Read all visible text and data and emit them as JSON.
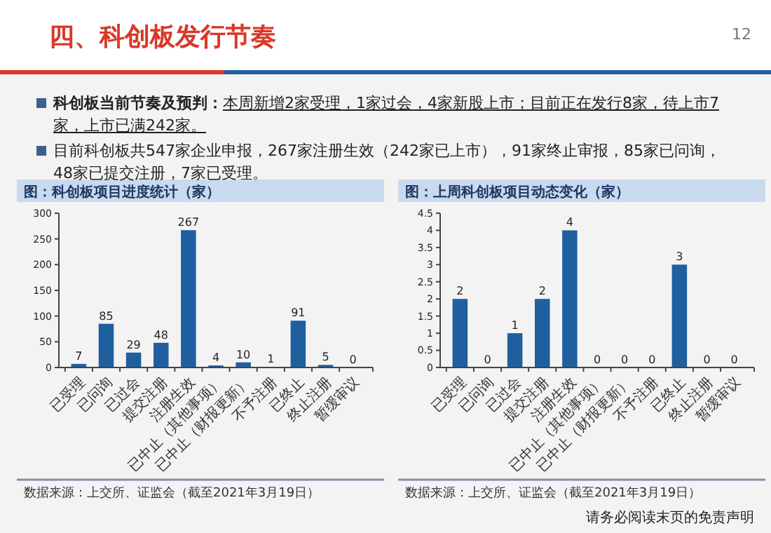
{
  "chart_data": [
    {
      "type": "other",
      "title": "四、科创板发行节奏",
      "annotations": [
        "12",
        "科创板当前节奏及预判：",
        "本周新增2家受理，1家过会，4家新股上市；目前正在发行8家，待上市7家，上市已满242家。",
        "目前科创板共547家企业申报，267家注册生效（242家已上市），91家终止审报，85家已问询，48家已提交注册，7家已受理。",
        "请务必阅读末页的免责声明"
      ]
    },
    {
      "type": "bar",
      "title": "图：科创板项目进度统计（家）",
      "categories": [
        "已受理",
        "已问询",
        "已过会",
        "提交注册",
        "注册生效",
        "已中止（其他事项）",
        "已中止（财报更新）",
        "不予注册",
        "已终止",
        "终止注册",
        "暂缓审议"
      ],
      "values": [
        7,
        85,
        29,
        48,
        267,
        4,
        10,
        1,
        91,
        5,
        0
      ],
      "color": "#1f5fa0",
      "ylim": [
        0,
        300
      ],
      "yticks": [
        0,
        50,
        100,
        150,
        200,
        250,
        300
      ],
      "data_labels": true,
      "grid": false,
      "annotations": [
        "数据来源：上交所、证监会（截至2021年3月19日）"
      ]
    },
    {
      "type": "bar",
      "title": "图：上周科创板项目动态变化（家）",
      "categories": [
        "已受理",
        "已问询",
        "已过会",
        "提交注册",
        "注册生效",
        "已中止（其他事项）",
        "已中止（财报更新）",
        "不予注册",
        "已终止",
        "终止注册",
        "暂缓审议"
      ],
      "values": [
        2,
        0,
        1,
        2,
        4,
        0,
        0,
        0,
        3,
        0,
        0
      ],
      "color": "#1f5fa0",
      "ylim": [
        0,
        4.5
      ],
      "yticks": [
        0,
        0.5,
        1,
        1.5,
        2,
        2.5,
        3,
        3.5,
        4,
        4.5
      ],
      "data_labels": true,
      "grid": false,
      "annotations": [
        "数据来源：上交所、证监会（截至2021年3月19日）"
      ]
    }
  ]
}
